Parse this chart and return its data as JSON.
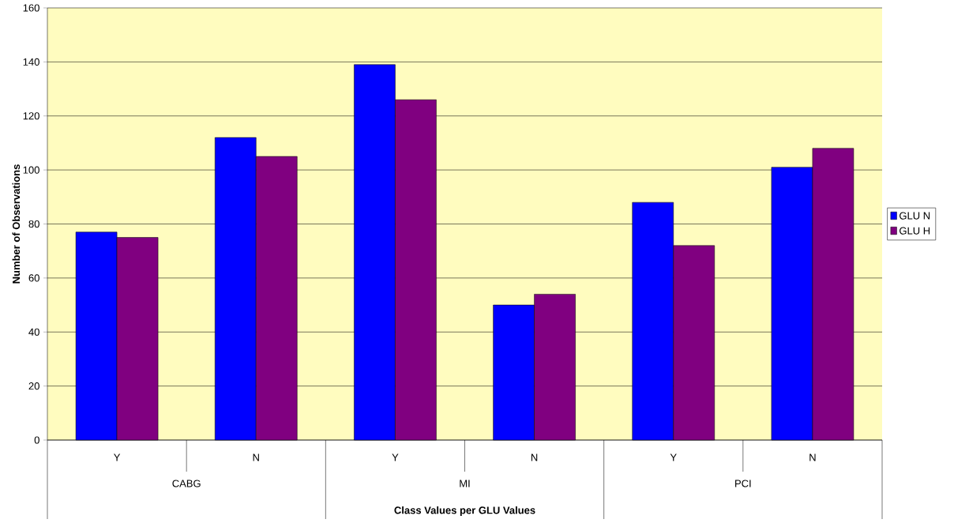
{
  "chart_data": {
    "type": "bar",
    "xlabel": "Class Values per GLU Values",
    "ylabel": "Number of Observations",
    "categories": [
      "Y",
      "N",
      "Y",
      "N",
      "Y",
      "N"
    ],
    "annotations": [
      "CABG",
      "MI",
      "PCI"
    ],
    "series": [
      {
        "name": "GLU N",
        "color": "#0000ff",
        "values": [
          77,
          112,
          139,
          50,
          88,
          101
        ]
      },
      {
        "name": "GLU H",
        "color": "#800080",
        "values": [
          75,
          105,
          126,
          54,
          72,
          108
        ]
      }
    ],
    "ylim": [
      0,
      160
    ],
    "yticks": [
      0,
      20,
      40,
      60,
      80,
      100,
      120,
      140,
      160
    ],
    "grid": "y",
    "legend": "right"
  }
}
